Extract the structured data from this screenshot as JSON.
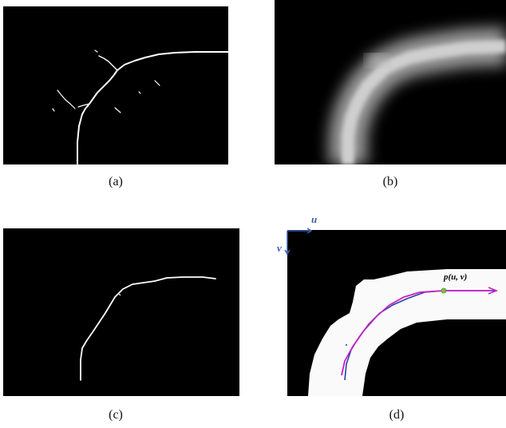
{
  "captions": {
    "a": "(a)",
    "b": "(b)",
    "c": "(c)",
    "d": "(d)"
  },
  "axes": {
    "u_label": "u",
    "v_label": "v"
  },
  "point_label": "p(u, v)",
  "colors": {
    "background": "#000000",
    "skeleton": "#ffffff",
    "axis": "#3a5fb0",
    "fitted_curve": "#c81ec8",
    "raw_path": "#2a3fa8",
    "point": "#7fbf3f"
  }
}
